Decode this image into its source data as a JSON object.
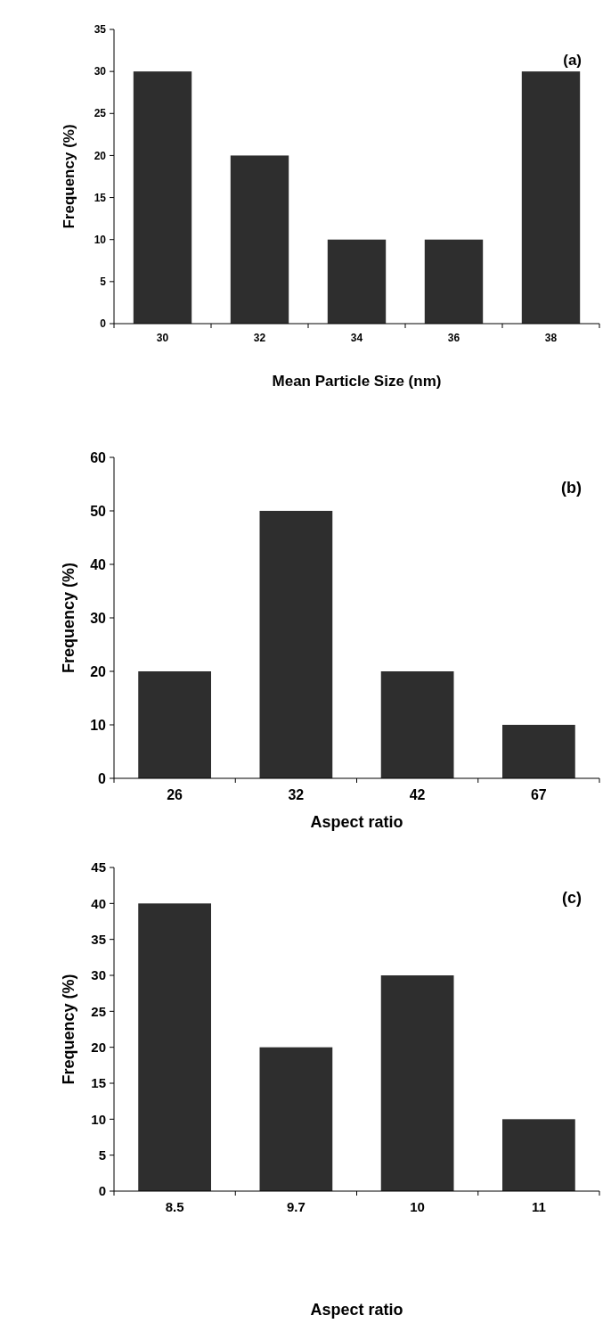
{
  "chart_data": [
    {
      "type": "bar",
      "categories": [
        "30",
        "32",
        "34",
        "36",
        "38"
      ],
      "values": [
        30,
        20,
        10,
        10,
        30
      ],
      "color": "#2e2e2e",
      "ylim": [
        0,
        35
      ],
      "yticks": [
        0,
        5,
        10,
        15,
        20,
        25,
        30,
        35
      ],
      "xlabel": "Mean Particle Size (nm)",
      "ylabel": "Frequency (%)",
      "annotations": [
        "(a)"
      ]
    },
    {
      "type": "bar",
      "categories": [
        "26",
        "32",
        "42",
        "67"
      ],
      "values": [
        20,
        50,
        20,
        10
      ],
      "color": "#2e2e2e",
      "ylim": [
        0,
        60
      ],
      "yticks": [
        0,
        10,
        20,
        30,
        40,
        50,
        60
      ],
      "xlabel": "Aspect ratio",
      "ylabel": "Frequency (%)",
      "annotations": [
        "(b)"
      ]
    },
    {
      "type": "bar",
      "categories": [
        "8.5",
        "9.7",
        "10",
        "11"
      ],
      "values": [
        40,
        20,
        30,
        10
      ],
      "color": "#2e2e2e",
      "ylim": [
        0,
        45
      ],
      "yticks": [
        0,
        5,
        10,
        15,
        20,
        25,
        30,
        35,
        40,
        45
      ],
      "xlabel": "Aspect ratio",
      "ylabel": "Frequency (%)",
      "annotations": [
        "(c)"
      ]
    }
  ]
}
